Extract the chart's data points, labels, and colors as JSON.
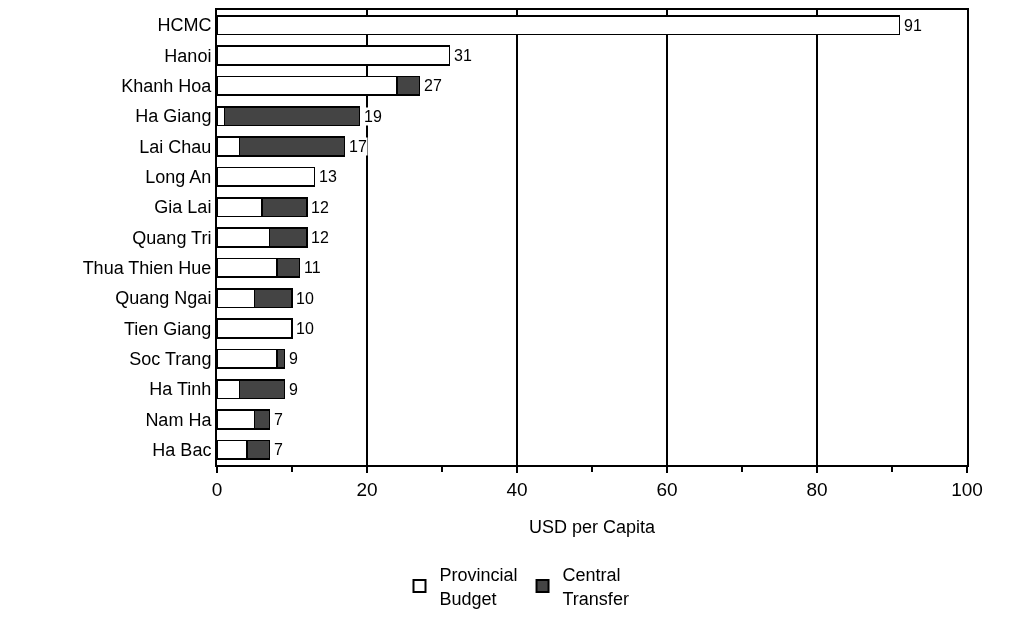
{
  "chart_data": {
    "type": "bar",
    "orientation": "horizontal",
    "stacked": true,
    "categories": [
      "HCMC",
      "Hanoi",
      "Khanh Hoa",
      "Ha Giang",
      "Lai Chau",
      "Long An",
      "Gia Lai",
      "Quang Tri",
      "Thua Thien Hue",
      "Quang Ngai",
      "Tien Giang",
      "Soc Trang",
      "Ha Tinh",
      "Nam Ha",
      "Ha Bac"
    ],
    "series": [
      {
        "name": "Provincial\nBudget",
        "color": "#ffffff",
        "values": [
          91,
          31,
          24,
          1,
          3,
          13,
          6,
          7,
          8,
          5,
          10,
          8,
          3,
          5,
          4
        ]
      },
      {
        "name": "Central\nTransfer",
        "color": "#444444",
        "values": [
          null,
          null,
          3,
          18,
          14,
          null,
          6,
          5,
          3,
          5,
          null,
          1,
          6,
          2,
          3
        ]
      }
    ],
    "totals": [
      "91",
      "31",
      "27",
      "19",
      "17",
      "13",
      "12",
      "12",
      "11",
      "10",
      "10",
      "9",
      "9",
      "7",
      "7"
    ],
    "xlabel": "USD per Capita",
    "xlim": [
      0,
      100
    ],
    "xticks": [
      0,
      {
        "value": 10,
        "label": null
      },
      20,
      {
        "value": 30,
        "label": null
      },
      40,
      {
        "value": 50,
        "label": null
      },
      60,
      {
        "value": 70,
        "label": null
      },
      80,
      {
        "value": 90,
        "label": null
      },
      100
    ],
    "grid": "x",
    "legend": "bottom"
  }
}
